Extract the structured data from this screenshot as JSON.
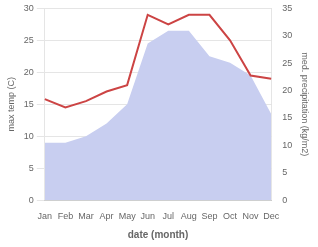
{
  "chart_data": {
    "type": "line",
    "categories": [
      "Jan",
      "Feb",
      "Mar",
      "Apr",
      "May",
      "Jun",
      "Jul",
      "Aug",
      "Sep",
      "Oct",
      "Nov",
      "Dec"
    ],
    "series": [
      {
        "type": "area",
        "color": "#c8cef0",
        "values": [
          9.0,
          9.0,
          10.0,
          12.0,
          15.0,
          24.5,
          26.5,
          26.5,
          22.5,
          21.5,
          19.5,
          13.5
        ]
      },
      {
        "type": "line",
        "color": "#cc4444",
        "values": [
          15.8,
          14.5,
          15.5,
          17.0,
          18.0,
          29.0,
          27.5,
          29.0,
          29.0,
          25.0,
          19.5,
          19.0
        ]
      }
    ],
    "xlabel": "date (month)",
    "ylabel": "max temp (C)",
    "y2label": "med. precipitation (kg/m2)",
    "ylim": [
      0,
      30
    ],
    "yticks": [
      0,
      5,
      10,
      15,
      20,
      25,
      30
    ],
    "y2lim": [
      0,
      35
    ],
    "y2ticks": [
      0,
      5,
      10,
      15,
      20,
      25,
      30,
      35
    ],
    "grid": true
  }
}
